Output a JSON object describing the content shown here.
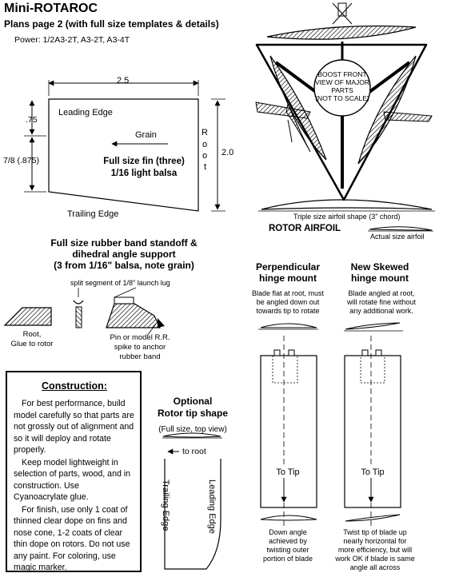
{
  "title": "Mini-ROTAROC",
  "subtitle": "Plans page 2 (with full size templates & details)",
  "power": "Power: 1/2A3-2T, A3-2T, A3-4T",
  "fin": {
    "width_dim": "2.5",
    "leading_edge": "Leading Edge",
    "dim_top": ".75",
    "dim_bottom": "7/8 (.875)",
    "grain": "Grain",
    "root_letters": [
      "R",
      "o",
      "o",
      "t"
    ],
    "height_dim": "2.0",
    "label_line1": "Full size fin (three)",
    "label_line2": "1/16 light balsa",
    "trailing_edge": "Trailing Edge"
  },
  "boost_view": {
    "lines": [
      "BOOST FRONT",
      "VIEW OF MAJOR",
      "PARTS",
      "(NOT TO SCALE)"
    ]
  },
  "airfoil": {
    "triple_label": "Triple size airfoil shape (3\" chord)",
    "title": "ROTOR AIRFOIL",
    "actual_label": "Actual size airfoil"
  },
  "standoff": {
    "title_lines": [
      "Full size rubber band standoff &",
      "dihedral angle support",
      "(3 from 1/16\" balsa, note grain)"
    ],
    "split_label": "split segment of 1/8\" launch lug",
    "root_lines": [
      "Root,",
      "Glue to rotor"
    ],
    "pin_lines": [
      "Pin or model R.R.",
      "spike to anchor",
      "rubber band"
    ]
  },
  "perpendicular": {
    "title_lines": [
      "Perpendicular",
      "hinge mount"
    ],
    "desc_lines": [
      "Blade flat at root, must",
      "be angled down  out",
      "towards tip to rotate"
    ],
    "to_tip": "To Tip",
    "bottom_lines": [
      "Down angle",
      "achieved by",
      "twisting outer",
      "portion of blade"
    ]
  },
  "skewed": {
    "title_lines": [
      "New Skewed",
      "hinge mount"
    ],
    "desc_lines": [
      "Blade angled at root,",
      "will rotate fine without",
      "any additional work."
    ],
    "to_tip": "To Tip",
    "bottom_lines": [
      "Twist tip of blade up",
      "nearly horizontal for",
      "more efficiency, but will",
      "work OK if blade is same",
      "angle all across"
    ]
  },
  "construction": {
    "heading": "Construction:",
    "paragraphs": [
      "For best performance, build model carefully so that parts are not grossly out of alignment and so it will deploy and rotate properly.",
      "Keep model lightweight in selection of parts, wood, and in construction. Use Cyanoacrylate glue.",
      "For finish, use only 1 coat of thinned clear dope on fins and nose cone, 1-2 coats of clear thin dope on rotors. Do not use any paint. For coloring, use magic marker."
    ]
  },
  "rotor_tip": {
    "title_lines": [
      "Optional",
      "Rotor tip shape"
    ],
    "subtitle": "(Full size, top view)",
    "to_root": "to root",
    "trailing_edge": "Trailing Edge",
    "leading_edge": "Leading Edge"
  }
}
